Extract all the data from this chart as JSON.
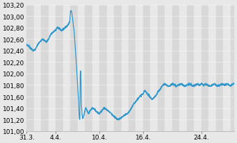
{
  "y_min": 101.0,
  "y_max": 103.2,
  "x_tick_labels": [
    "31.3.",
    "4.4.",
    "10.4.",
    "16.4.",
    "24.4."
  ],
  "x_tick_pos": [
    0,
    4,
    10,
    16,
    24
  ],
  "x_max": 28.5,
  "line_color": "#3399cc",
  "bg_color": "#e8e8e8",
  "stripe_light": "#e8e8e8",
  "stripe_dark": "#d8d8d8",
  "grid_color": "#ffffff",
  "line_width": 0.9,
  "keypoints_x": [
    0.0,
    0.3,
    0.6,
    0.9,
    1.2,
    1.5,
    1.8,
    2.1,
    2.4,
    2.7,
    3.0,
    3.3,
    3.6,
    3.9,
    4.2,
    4.5,
    4.8,
    5.1,
    5.4,
    5.7,
    5.9,
    6.0,
    6.1,
    6.2,
    6.25,
    6.3,
    6.35,
    6.4,
    6.5,
    6.6,
    6.7,
    6.8,
    6.9,
    7.0,
    7.1,
    7.15,
    7.2,
    7.25,
    7.3,
    7.35,
    7.4,
    7.45,
    7.5,
    7.6,
    7.7,
    7.8,
    7.9,
    8.0,
    8.1,
    8.2,
    8.3,
    8.4,
    8.5,
    8.7,
    9.0,
    9.3,
    9.5,
    9.8,
    10.0,
    10.3,
    10.6,
    10.9,
    11.2,
    11.5,
    11.8,
    12.0,
    12.3,
    12.6,
    12.9,
    13.2,
    13.5,
    13.8,
    14.0,
    14.3,
    14.6,
    14.9,
    15.2,
    15.5,
    15.8,
    16.0,
    16.2,
    16.4,
    16.6,
    16.8,
    17.0,
    17.2,
    17.5,
    17.8,
    18.0,
    18.3,
    18.6,
    18.9,
    19.2,
    19.5,
    19.8,
    20.0,
    20.3,
    20.6,
    20.9,
    21.2,
    21.5,
    21.8,
    22.0,
    22.3,
    22.6,
    22.9,
    23.2,
    23.5,
    23.8,
    24.0,
    24.3,
    24.6,
    24.9,
    25.2,
    25.5,
    25.8,
    26.0,
    26.3,
    26.6,
    26.9,
    27.2,
    27.5,
    27.8,
    28.0,
    28.3
  ],
  "keypoints_y": [
    102.5,
    102.48,
    102.43,
    102.4,
    102.42,
    102.5,
    102.55,
    102.6,
    102.58,
    102.55,
    102.6,
    102.68,
    102.72,
    102.75,
    102.8,
    102.78,
    102.75,
    102.78,
    102.82,
    102.85,
    102.9,
    103.08,
    103.1,
    103.05,
    103.0,
    102.95,
    102.9,
    102.85,
    102.75,
    102.6,
    102.4,
    102.2,
    102.0,
    101.8,
    101.6,
    101.4,
    101.25,
    101.2,
    101.22,
    102.0,
    102.05,
    101.95,
    101.5,
    101.3,
    101.22,
    101.25,
    101.3,
    101.35,
    101.4,
    101.38,
    101.35,
    101.32,
    101.3,
    101.35,
    101.4,
    101.38,
    101.35,
    101.32,
    101.3,
    101.35,
    101.4,
    101.38,
    101.35,
    101.32,
    101.28,
    101.25,
    101.22,
    101.2,
    101.22,
    101.25,
    101.28,
    101.3,
    101.32,
    101.38,
    101.45,
    101.5,
    101.55,
    101.6,
    101.63,
    101.65,
    101.7,
    101.68,
    101.65,
    101.62,
    101.58,
    101.55,
    101.58,
    101.62,
    101.68,
    101.72,
    101.78,
    101.82,
    101.8,
    101.78,
    101.8,
    101.82,
    101.8,
    101.78,
    101.8,
    101.82,
    101.8,
    101.78,
    101.8,
    101.82,
    101.8,
    101.78,
    101.8,
    101.82,
    101.8,
    101.82,
    101.8,
    101.82,
    101.8,
    101.78,
    101.8,
    101.82,
    101.8,
    101.78,
    101.8,
    101.82,
    101.8,
    101.82,
    101.8,
    101.78,
    101.82
  ]
}
